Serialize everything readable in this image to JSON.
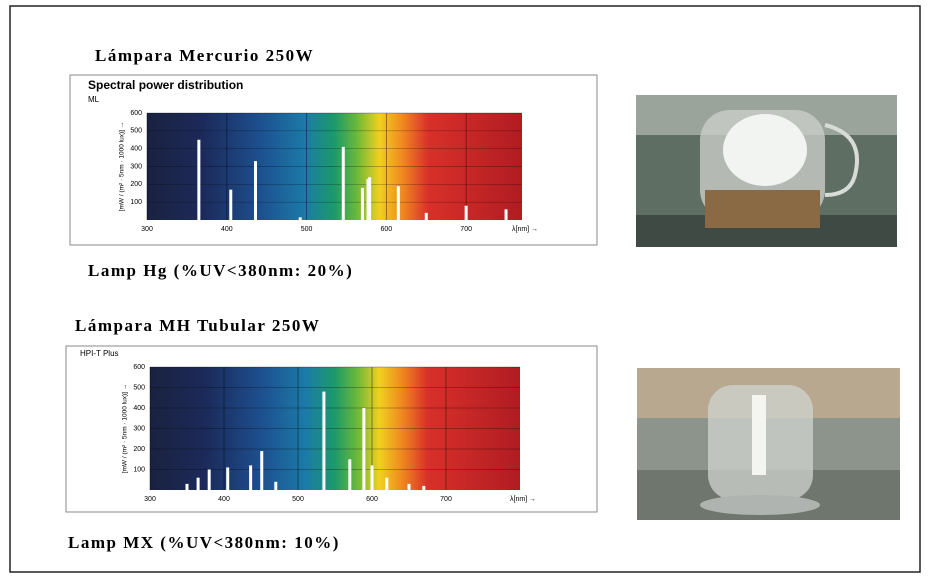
{
  "sections": [
    {
      "heading": "Lámpara Mercurio 250W",
      "caption": "Lamp Hg (%UV<380nm: 20%)"
    },
    {
      "heading": "Lámpara MH Tubular 250W",
      "caption": "Lamp MX (%UV<380nm: 10%)"
    }
  ],
  "chart_data": [
    {
      "type": "bar",
      "title": "Spectral power distribution",
      "subtitle": "ML",
      "y_label": "[mW / (m² · 5nm · 1000 lux)] →",
      "x_label": "λ[nm] →",
      "x": [
        365,
        405,
        436,
        492,
        546,
        570,
        577,
        579,
        615,
        650,
        700,
        750
      ],
      "values": [
        450,
        170,
        330,
        15,
        410,
        180,
        230,
        240,
        190,
        40,
        80,
        60
      ],
      "color": "#ffffff",
      "grid": true,
      "xlim": [
        300,
        770
      ],
      "xticks": [
        300,
        400,
        500,
        600,
        700
      ],
      "ylim": [
        0,
        600
      ],
      "yticks": [
        100,
        200,
        300,
        400,
        500,
        600
      ]
    },
    {
      "type": "bar",
      "title": "HPI-T Plus",
      "y_label": "[mW / (m² · 5nm · 1000 lux)] →",
      "x_label": "λ[nm] →",
      "x": [
        350,
        365,
        380,
        405,
        436,
        451,
        470,
        535,
        570,
        589,
        600,
        620,
        650,
        670
      ],
      "values": [
        30,
        60,
        100,
        110,
        120,
        190,
        40,
        480,
        150,
        400,
        120,
        60,
        30,
        20
      ],
      "color": "#ffffff",
      "grid": true,
      "xlim": [
        300,
        800
      ],
      "xticks": [
        300,
        400,
        500,
        600,
        700
      ],
      "ylim": [
        0,
        600
      ],
      "yticks": [
        100,
        200,
        300,
        400,
        500,
        600
      ]
    }
  ]
}
